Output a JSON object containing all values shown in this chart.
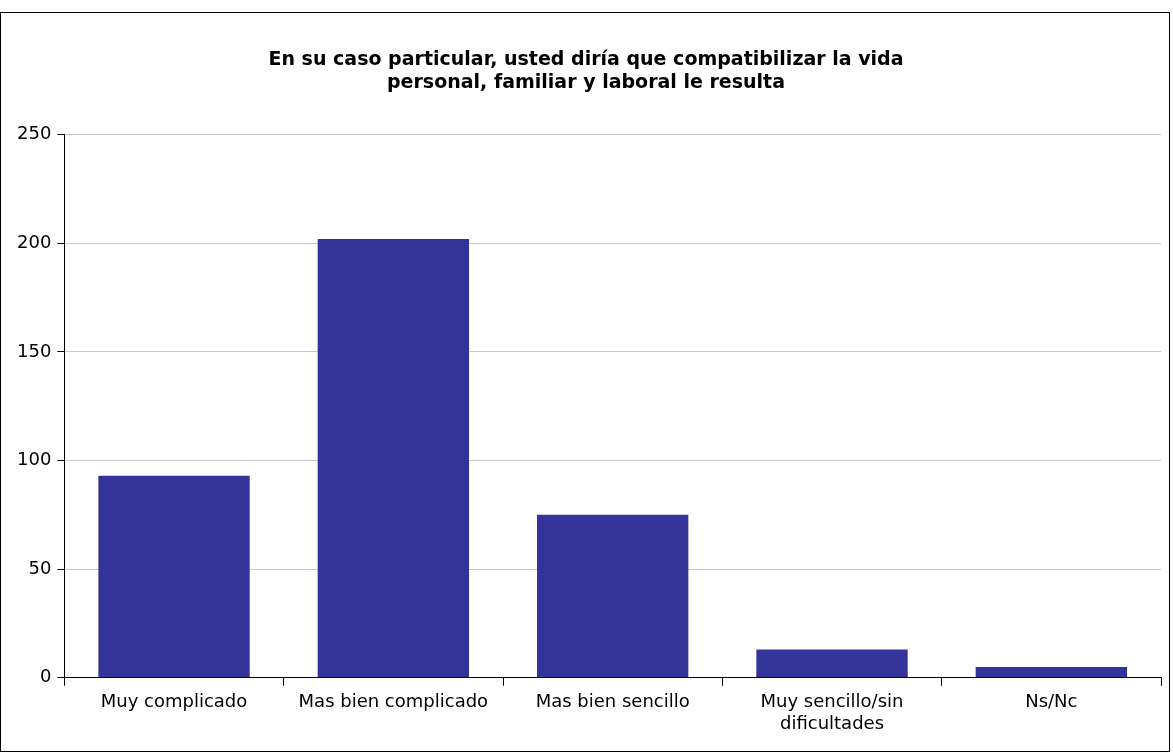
{
  "chart_data": {
    "type": "bar",
    "title": "En su caso particular, usted diría que compatibilizar la vida personal, familiar y laboral le resulta",
    "categories": [
      "Muy complicado",
      "Mas bien complicado",
      "Mas bien sencillo",
      "Muy sencillo/sin dificultades",
      "Ns/Nc"
    ],
    "values": [
      93,
      202,
      75,
      13,
      5
    ],
    "color": "#333399",
    "ylim": [
      0,
      250
    ],
    "yticks": [
      0,
      50,
      100,
      150,
      200,
      250
    ],
    "grid": "y",
    "legend": false
  }
}
